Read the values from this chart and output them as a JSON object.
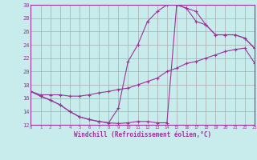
{
  "xlabel": "Windchill (Refroidissement éolien,°C)",
  "bg_color": "#c8ecec",
  "grid_color": "#aaaaaa",
  "line_color": "#993399",
  "xlim": [
    0,
    23
  ],
  "ylim": [
    12,
    30
  ],
  "xticks": [
    0,
    1,
    2,
    3,
    4,
    5,
    6,
    7,
    8,
    9,
    10,
    11,
    12,
    13,
    14,
    15,
    16,
    17,
    18,
    19,
    20,
    21,
    22,
    23
  ],
  "yticks": [
    12,
    14,
    16,
    18,
    20,
    22,
    24,
    26,
    28,
    30
  ],
  "line1_x": [
    0,
    1,
    2,
    3,
    4,
    5,
    6,
    7,
    8,
    9,
    10,
    11,
    12,
    13,
    14,
    15,
    16,
    17,
    18,
    19,
    20,
    21,
    22,
    23
  ],
  "line1_y": [
    17.0,
    16.3,
    15.7,
    15.0,
    14.0,
    13.2,
    12.8,
    12.5,
    12.3,
    12.2,
    12.3,
    12.5,
    12.5,
    12.3,
    12.3,
    30.0,
    29.5,
    29.0,
    27.0,
    25.5,
    25.5,
    25.5,
    25.0,
    23.5
  ],
  "line2_x": [
    0,
    1,
    2,
    3,
    4,
    5,
    6,
    7,
    8,
    9,
    10,
    11,
    12,
    13,
    14,
    15,
    16,
    17,
    18,
    19,
    20,
    21,
    22,
    23
  ],
  "line2_y": [
    17.0,
    16.5,
    16.5,
    16.5,
    16.3,
    16.3,
    16.5,
    16.8,
    17.0,
    17.3,
    17.5,
    18.0,
    18.5,
    19.0,
    20.0,
    20.5,
    21.2,
    21.5,
    22.0,
    22.5,
    23.0,
    23.3,
    23.5,
    21.3
  ],
  "line3_x": [
    0,
    1,
    2,
    3,
    4,
    5,
    6,
    7,
    8,
    9,
    10,
    11,
    12,
    13,
    14,
    15,
    16,
    17,
    18,
    19,
    20,
    21,
    22,
    23
  ],
  "line3_y": [
    17.0,
    16.3,
    15.7,
    15.0,
    14.0,
    13.2,
    12.8,
    12.5,
    12.3,
    14.5,
    21.5,
    24.0,
    27.5,
    29.0,
    30.0,
    30.0,
    29.5,
    27.5,
    27.0,
    25.5,
    25.5,
    25.5,
    25.0,
    23.5
  ]
}
